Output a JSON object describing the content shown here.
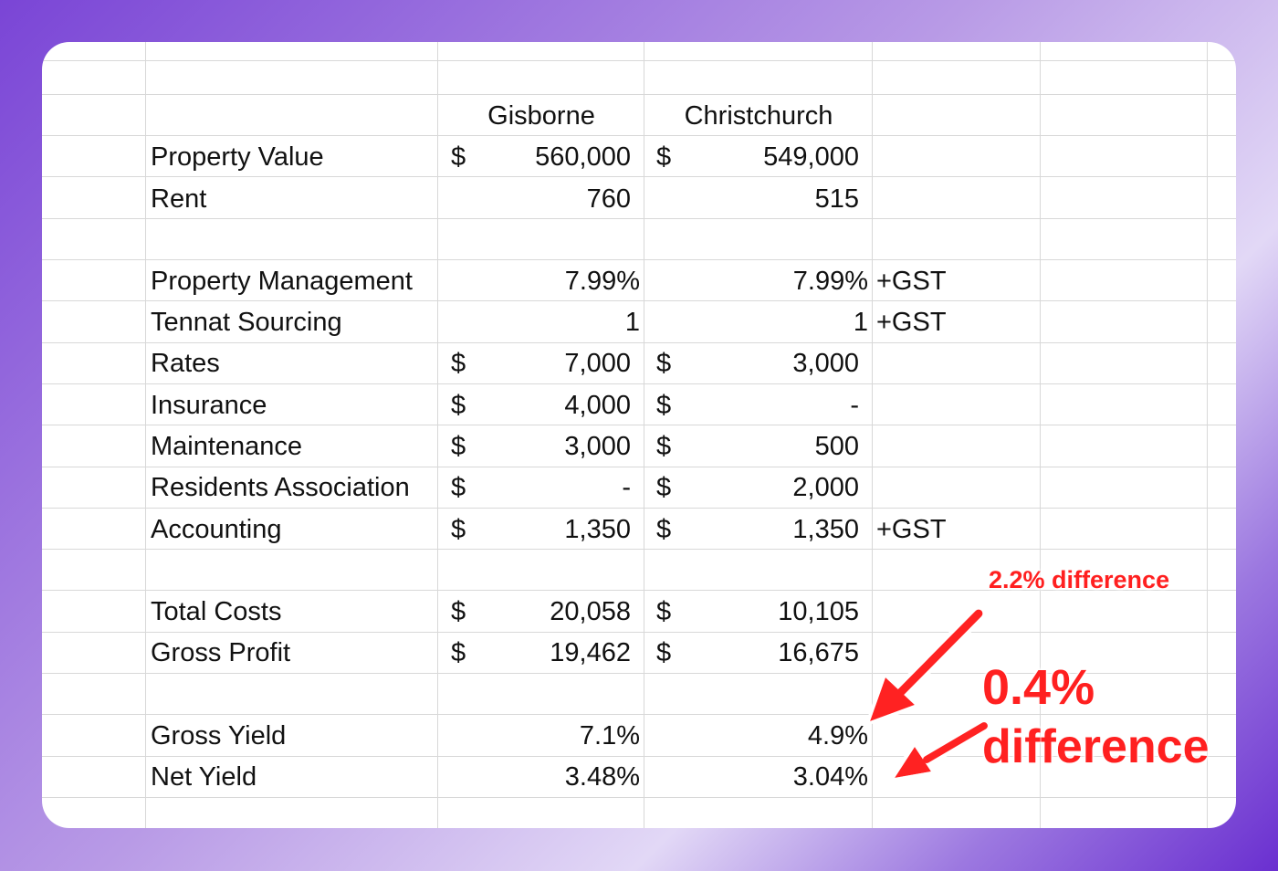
{
  "columns": [
    "Gisborne",
    "Christchurch"
  ],
  "rows": [
    {
      "label": "Property Value",
      "cur1": "$",
      "v1": "560,000",
      "cur2": "$",
      "v2": "549,000",
      "note": ""
    },
    {
      "label": "Rent",
      "cur1": "",
      "v1": "760",
      "cur2": "",
      "v2": "515",
      "note": ""
    },
    {
      "label": "Property Management",
      "cur1": "",
      "v1": "7.99%",
      "cur2": "",
      "v2": "7.99%",
      "note": "+GST"
    },
    {
      "label": "Tennat Sourcing",
      "cur1": "",
      "v1": "1",
      "cur2": "",
      "v2": "1",
      "note": "+GST"
    },
    {
      "label": "Rates",
      "cur1": "$",
      "v1": "7,000",
      "cur2": "$",
      "v2": "3,000",
      "note": ""
    },
    {
      "label": "Insurance",
      "cur1": "$",
      "v1": "4,000",
      "cur2": "$",
      "v2": "-",
      "note": ""
    },
    {
      "label": "Maintenance",
      "cur1": "$",
      "v1": "3,000",
      "cur2": "$",
      "v2": "500",
      "note": ""
    },
    {
      "label": "Residents Association",
      "cur1": "$",
      "v1": "-",
      "cur2": "$",
      "v2": "2,000",
      "note": ""
    },
    {
      "label": "Accounting",
      "cur1": "$",
      "v1": "1,350",
      "cur2": "$",
      "v2": "1,350",
      "note": "+GST"
    },
    {
      "label": "Total Costs",
      "cur1": "$",
      "v1": "20,058",
      "cur2": "$",
      "v2": "10,105",
      "note": ""
    },
    {
      "label": "Gross Profit",
      "cur1": "$",
      "v1": "19,462",
      "cur2": "$",
      "v2": "16,675",
      "note": ""
    },
    {
      "label": "Gross Yield",
      "cur1": "",
      "v1": "7.1%",
      "cur2": "",
      "v2": "4.9%",
      "note": ""
    },
    {
      "label": "Net Yield",
      "cur1": "",
      "v1": "3.48%",
      "cur2": "",
      "v2": "3.04%",
      "note": ""
    }
  ],
  "annotations": {
    "small": "2.2% difference",
    "big_line1": "0.4%",
    "big_line2": "difference",
    "color": "#ff2020"
  }
}
